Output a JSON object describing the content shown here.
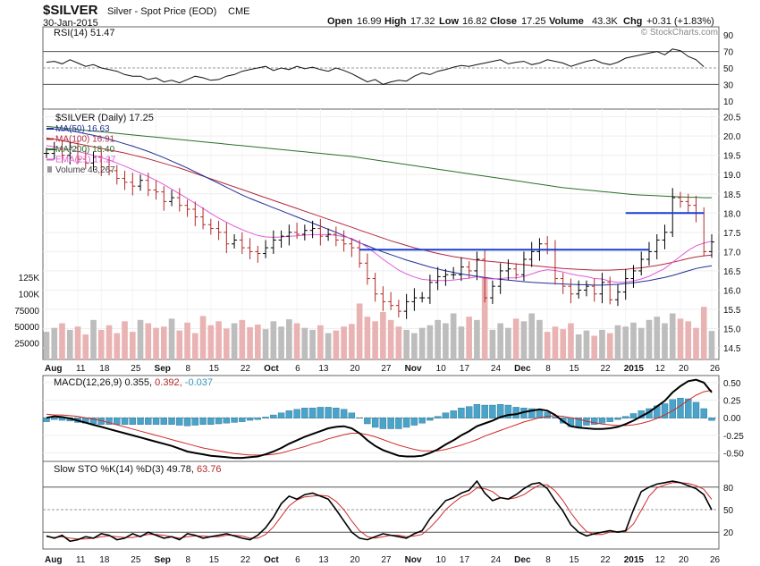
{
  "header": {
    "symbol": "$SILVER",
    "description": "Silver - Spot Price (EOD)",
    "exchange": "CME",
    "date": "30-Jan-2015",
    "open_label": "Open",
    "open": "16.99",
    "high_label": "High",
    "high": "17.32",
    "low_label": "Low",
    "low": "16.82",
    "close_label": "Close",
    "close": "17.25",
    "volume_label": "Volume",
    "volume": "43.3K",
    "chg_label": "Chg",
    "chg": "+0.31 (+1.83%)",
    "copyright": "© StockCharts.com"
  },
  "colors": {
    "ma50": "#1f2f96",
    "ma100": "#b4283e",
    "ma200": "#2b6e2b",
    "ema21": "#e05ad8",
    "up": "#000000",
    "down": "#b42828",
    "vol_up": "#bdbdbd",
    "vol_down": "#eab3b3",
    "hist": "#4aa3c8",
    "rsi_fill": "#a87272",
    "hline": "#1a3ed1"
  },
  "chart_data": [
    {
      "type": "line",
      "panel": "rsi",
      "title": "RSI(14) 51.47",
      "ylim": [
        0,
        100
      ],
      "ticks": [
        90,
        70,
        50,
        30,
        10
      ],
      "reference_lines": [
        70,
        50,
        30
      ],
      "values": [
        57,
        58,
        55,
        60,
        56,
        52,
        54,
        50,
        48,
        46,
        42,
        40,
        40,
        36,
        38,
        33,
        35,
        32,
        36,
        40,
        38,
        35,
        36,
        40,
        42,
        46,
        48,
        50,
        52,
        47,
        50,
        48,
        52,
        49,
        51,
        48,
        46,
        50,
        47,
        43,
        38,
        33,
        36,
        30,
        33,
        35,
        34,
        40,
        44,
        42,
        46,
        48,
        51,
        53,
        52,
        54,
        56,
        58,
        60,
        55,
        57,
        58,
        54,
        56,
        60,
        58,
        56,
        52,
        55,
        58,
        60,
        56,
        54,
        57,
        62,
        64,
        66,
        68,
        70,
        66,
        73,
        71,
        64,
        60,
        51.47
      ]
    },
    {
      "type": "candlestick",
      "panel": "price",
      "title": "$SILVER (Daily) 17.25",
      "ylim": [
        14.2,
        20.7
      ],
      "ticks": [
        20.5,
        20.0,
        19.5,
        19.0,
        18.5,
        18.0,
        17.5,
        17.0,
        16.5,
        16.0,
        15.5,
        15.0,
        14.5
      ],
      "volume_ticks": [
        "125K",
        "100K",
        "75000",
        "50000",
        "25000"
      ],
      "volume_max": 125000,
      "legend": [
        {
          "key": "ma50",
          "label": "MA(50) 16.63"
        },
        {
          "key": "ma100",
          "label": "MA(100) 16.91"
        },
        {
          "key": "ma200",
          "label": "MA(200) 18.40"
        },
        {
          "key": "ema21",
          "label": "EMA(21) 17.27"
        },
        {
          "key": "volume",
          "label": "Volume 43,267"
        }
      ],
      "x_labels": [
        "Aug",
        "11",
        "18",
        "25",
        "Sep",
        "8",
        "15",
        "22",
        "Oct",
        "6",
        "13",
        "20",
        "27",
        "Nov",
        "10",
        "17",
        "24",
        "Dec",
        "8",
        "15",
        "22",
        "2015",
        "12",
        "20",
        "26"
      ],
      "horizontal_lines": [
        {
          "y": 17.05,
          "from": 40,
          "to": 77
        },
        {
          "y": 18.0,
          "from": 74,
          "to": 84
        }
      ],
      "closes": [
        19.55,
        19.65,
        19.5,
        19.7,
        19.4,
        19.3,
        19.45,
        19.2,
        19.1,
        18.9,
        18.8,
        18.7,
        18.85,
        18.6,
        18.55,
        18.3,
        18.4,
        18.2,
        18.1,
        17.9,
        17.7,
        17.6,
        17.5,
        17.2,
        17.3,
        17.1,
        17.0,
        16.95,
        17.1,
        17.3,
        17.4,
        17.5,
        17.45,
        17.55,
        17.6,
        17.4,
        17.45,
        17.3,
        17.2,
        17.1,
        16.7,
        16.3,
        15.9,
        15.7,
        15.6,
        15.45,
        15.7,
        15.8,
        15.8,
        16.2,
        16.35,
        16.4,
        16.4,
        16.6,
        16.5,
        16.8,
        15.8,
        16.1,
        16.5,
        16.55,
        16.4,
        16.8,
        17.0,
        17.2,
        17.05,
        16.3,
        16.1,
        15.9,
        16.0,
        16.1,
        15.9,
        16.2,
        15.75,
        15.95,
        16.3,
        16.5,
        16.8,
        17.0,
        17.3,
        17.5,
        18.4,
        18.3,
        18.2,
        18.0,
        17.0,
        17.25
      ],
      "volume": [
        42000,
        48000,
        55000,
        45000,
        50000,
        38000,
        60000,
        45000,
        52000,
        40000,
        58000,
        42000,
        60000,
        55000,
        48000,
        50000,
        62000,
        44000,
        56000,
        40000,
        66000,
        52000,
        58000,
        47000,
        55000,
        60000,
        49000,
        53000,
        46000,
        58000,
        50000,
        61000,
        55000,
        48000,
        45000,
        52000,
        40000,
        44000,
        50000,
        54000,
        85000,
        65000,
        58000,
        72000,
        60000,
        50000,
        45000,
        40000,
        48000,
        52000,
        60000,
        55000,
        70000,
        50000,
        65000,
        60000,
        125000,
        45000,
        55000,
        48000,
        62000,
        58000,
        70000,
        60000,
        42000,
        50000,
        46000,
        55000,
        38000,
        44000,
        36000,
        45000,
        40000,
        52000,
        50000,
        56000,
        48000,
        60000,
        65000,
        55000,
        70000,
        62000,
        58000,
        48000,
        80000,
        43267
      ],
      "ma50": [
        20.2,
        20.18,
        20.16,
        20.14,
        20.1,
        20.06,
        20.02,
        19.97,
        19.92,
        19.86,
        19.8,
        19.74,
        19.67,
        19.6,
        19.52,
        19.44,
        19.35,
        19.26,
        19.17,
        19.07,
        18.97,
        18.87,
        18.77,
        18.67,
        18.57,
        18.47,
        18.38,
        18.3,
        18.22,
        18.14,
        18.06,
        17.98,
        17.9,
        17.82,
        17.74,
        17.66,
        17.58,
        17.5,
        17.41,
        17.32,
        17.23,
        17.15,
        17.07,
        16.99,
        16.92,
        16.85,
        16.78,
        16.72,
        16.66,
        16.6,
        16.55,
        16.5,
        16.46,
        16.42,
        16.39,
        16.36,
        16.33,
        16.3,
        16.28,
        16.26,
        16.24,
        16.22,
        16.2,
        16.19,
        16.18,
        16.17,
        16.16,
        16.15,
        16.14,
        16.14,
        16.13,
        16.13,
        16.14,
        16.15,
        16.17,
        16.19,
        16.22,
        16.25,
        16.29,
        16.33,
        16.38,
        16.44,
        16.5,
        16.56,
        16.6,
        16.63
      ],
      "ma100": [
        19.95,
        19.92,
        19.88,
        19.84,
        19.8,
        19.76,
        19.72,
        19.68,
        19.64,
        19.6,
        19.56,
        19.51,
        19.46,
        19.41,
        19.35,
        19.29,
        19.23,
        19.17,
        19.1,
        19.03,
        18.96,
        18.89,
        18.82,
        18.75,
        18.68,
        18.61,
        18.54,
        18.47,
        18.4,
        18.33,
        18.26,
        18.19,
        18.12,
        18.05,
        17.98,
        17.91,
        17.84,
        17.77,
        17.7,
        17.63,
        17.56,
        17.49,
        17.42,
        17.35,
        17.28,
        17.22,
        17.16,
        17.1,
        17.05,
        17.0,
        16.95,
        16.91,
        16.87,
        16.84,
        16.81,
        16.78,
        16.76,
        16.74,
        16.72,
        16.7,
        16.68,
        16.66,
        16.64,
        16.62,
        16.6,
        16.58,
        16.56,
        16.55,
        16.54,
        16.53,
        16.52,
        16.52,
        16.52,
        16.53,
        16.54,
        16.56,
        16.58,
        16.61,
        16.64,
        16.68,
        16.72,
        16.77,
        16.82,
        16.86,
        16.89,
        16.91
      ],
      "ma200": [
        20.25,
        20.23,
        20.21,
        20.19,
        20.17,
        20.15,
        20.13,
        20.11,
        20.09,
        20.07,
        20.05,
        20.03,
        20.01,
        19.99,
        19.97,
        19.95,
        19.93,
        19.91,
        19.89,
        19.87,
        19.85,
        19.83,
        19.81,
        19.79,
        19.77,
        19.75,
        19.73,
        19.71,
        19.69,
        19.67,
        19.65,
        19.63,
        19.61,
        19.59,
        19.57,
        19.55,
        19.53,
        19.51,
        19.49,
        19.47,
        19.44,
        19.41,
        19.38,
        19.35,
        19.32,
        19.29,
        19.26,
        19.23,
        19.2,
        19.17,
        19.14,
        19.11,
        19.08,
        19.05,
        19.02,
        18.99,
        18.96,
        18.93,
        18.9,
        18.87,
        18.84,
        18.81,
        18.78,
        18.75,
        18.72,
        18.69,
        18.66,
        18.64,
        18.62,
        18.6,
        18.58,
        18.56,
        18.54,
        18.52,
        18.5,
        18.48,
        18.47,
        18.46,
        18.45,
        18.44,
        18.43,
        18.42,
        18.41,
        18.41,
        18.4,
        18.4
      ],
      "ema21": [
        19.75,
        19.72,
        19.68,
        19.65,
        19.6,
        19.55,
        19.5,
        19.44,
        19.38,
        19.3,
        19.22,
        19.13,
        19.04,
        18.95,
        18.85,
        18.74,
        18.62,
        18.5,
        18.38,
        18.25,
        18.12,
        17.99,
        17.87,
        17.76,
        17.66,
        17.57,
        17.49,
        17.42,
        17.38,
        17.37,
        17.38,
        17.4,
        17.41,
        17.43,
        17.44,
        17.44,
        17.44,
        17.42,
        17.39,
        17.34,
        17.24,
        17.11,
        16.96,
        16.8,
        16.66,
        16.52,
        16.42,
        16.34,
        16.28,
        16.26,
        16.25,
        16.25,
        16.26,
        16.29,
        16.31,
        16.35,
        16.3,
        16.29,
        16.3,
        16.32,
        16.32,
        16.36,
        16.42,
        16.49,
        16.53,
        16.51,
        16.47,
        16.42,
        16.38,
        16.35,
        16.3,
        16.29,
        16.23,
        16.2,
        16.21,
        16.24,
        16.29,
        16.36,
        16.46,
        16.56,
        16.72,
        16.88,
        17.03,
        17.15,
        17.22,
        17.27
      ]
    },
    {
      "type": "line",
      "panel": "macd",
      "title": "MACD(12,26,9) 0.355, 0.392, -0.037",
      "title_parts": [
        "MACD(12,26,9)",
        "0.355,",
        "0.392,",
        "-0.037"
      ],
      "ylim": [
        -0.62,
        0.6
      ],
      "ticks": [
        0.5,
        0.25,
        0.0,
        -0.25,
        -0.5
      ],
      "macd": [
        0.0,
        0.02,
        0.01,
        -0.01,
        -0.04,
        -0.07,
        -0.1,
        -0.13,
        -0.16,
        -0.19,
        -0.22,
        -0.25,
        -0.28,
        -0.31,
        -0.34,
        -0.37,
        -0.4,
        -0.44,
        -0.48,
        -0.5,
        -0.52,
        -0.54,
        -0.55,
        -0.56,
        -0.57,
        -0.57,
        -0.56,
        -0.55,
        -0.52,
        -0.48,
        -0.43,
        -0.37,
        -0.32,
        -0.27,
        -0.23,
        -0.19,
        -0.15,
        -0.13,
        -0.12,
        -0.15,
        -0.22,
        -0.32,
        -0.4,
        -0.46,
        -0.5,
        -0.54,
        -0.55,
        -0.55,
        -0.54,
        -0.5,
        -0.45,
        -0.38,
        -0.32,
        -0.25,
        -0.19,
        -0.12,
        -0.08,
        -0.04,
        0.01,
        0.04,
        0.05,
        0.08,
        0.1,
        0.12,
        0.1,
        0.04,
        -0.05,
        -0.12,
        -0.14,
        -0.15,
        -0.16,
        -0.16,
        -0.15,
        -0.13,
        -0.09,
        -0.04,
        0.02,
        0.08,
        0.16,
        0.24,
        0.36,
        0.45,
        0.52,
        0.54,
        0.5,
        0.36
      ],
      "signal": [
        0.05,
        0.04,
        0.04,
        0.03,
        0.02,
        0.0,
        -0.02,
        -0.04,
        -0.07,
        -0.1,
        -0.13,
        -0.16,
        -0.19,
        -0.22,
        -0.25,
        -0.28,
        -0.31,
        -0.34,
        -0.37,
        -0.4,
        -0.43,
        -0.45,
        -0.47,
        -0.49,
        -0.51,
        -0.52,
        -0.53,
        -0.53,
        -0.53,
        -0.52,
        -0.5,
        -0.47,
        -0.44,
        -0.41,
        -0.37,
        -0.34,
        -0.3,
        -0.27,
        -0.24,
        -0.22,
        -0.22,
        -0.24,
        -0.27,
        -0.31,
        -0.35,
        -0.39,
        -0.42,
        -0.45,
        -0.47,
        -0.47,
        -0.47,
        -0.45,
        -0.42,
        -0.39,
        -0.35,
        -0.31,
        -0.26,
        -0.22,
        -0.18,
        -0.14,
        -0.1,
        -0.06,
        -0.03,
        0.0,
        0.02,
        0.03,
        0.02,
        0.0,
        -0.02,
        -0.05,
        -0.07,
        -0.09,
        -0.1,
        -0.11,
        -0.11,
        -0.1,
        -0.08,
        -0.05,
        -0.01,
        0.04,
        0.1,
        0.17,
        0.25,
        0.32,
        0.37,
        0.392
      ]
    },
    {
      "type": "line",
      "panel": "stochastic",
      "title": "Slow STO %K(14) %D(3) 49.78, 63.76",
      "title_parts": [
        "Slow STO %K(14) %D(3)",
        "49.78,",
        "63.76"
      ],
      "ylim": [
        0,
        100
      ],
      "ticks": [
        80,
        50,
        20
      ],
      "reference_lines": [
        80,
        50,
        20
      ],
      "k": [
        15,
        12,
        16,
        8,
        10,
        14,
        12,
        18,
        16,
        10,
        12,
        18,
        14,
        20,
        16,
        12,
        14,
        10,
        18,
        16,
        12,
        14,
        16,
        18,
        15,
        12,
        10,
        16,
        26,
        40,
        58,
        68,
        64,
        70,
        72,
        68,
        64,
        50,
        35,
        20,
        12,
        10,
        14,
        18,
        16,
        14,
        12,
        18,
        22,
        38,
        50,
        62,
        66,
        72,
        76,
        88,
        72,
        62,
        66,
        64,
        70,
        78,
        84,
        86,
        78,
        62,
        48,
        30,
        20,
        15,
        18,
        20,
        22,
        20,
        22,
        50,
        74,
        80,
        84,
        86,
        88,
        86,
        82,
        78,
        70,
        49.78
      ],
      "d": [
        14,
        13,
        14,
        12,
        11,
        11,
        12,
        14,
        15,
        14,
        13,
        13,
        15,
        17,
        17,
        16,
        14,
        12,
        14,
        15,
        15,
        14,
        14,
        16,
        16,
        15,
        12,
        12,
        17,
        27,
        41,
        55,
        63,
        67,
        68,
        69,
        68,
        61,
        50,
        35,
        22,
        14,
        12,
        14,
        16,
        16,
        14,
        15,
        17,
        26,
        37,
        50,
        59,
        67,
        71,
        79,
        78,
        74,
        66,
        64,
        66,
        70,
        77,
        83,
        83,
        75,
        62,
        46,
        32,
        21,
        17,
        17,
        20,
        21,
        21,
        31,
        49,
        68,
        79,
        83,
        86,
        86,
        85,
        82,
        77,
        63.76
      ]
    }
  ]
}
